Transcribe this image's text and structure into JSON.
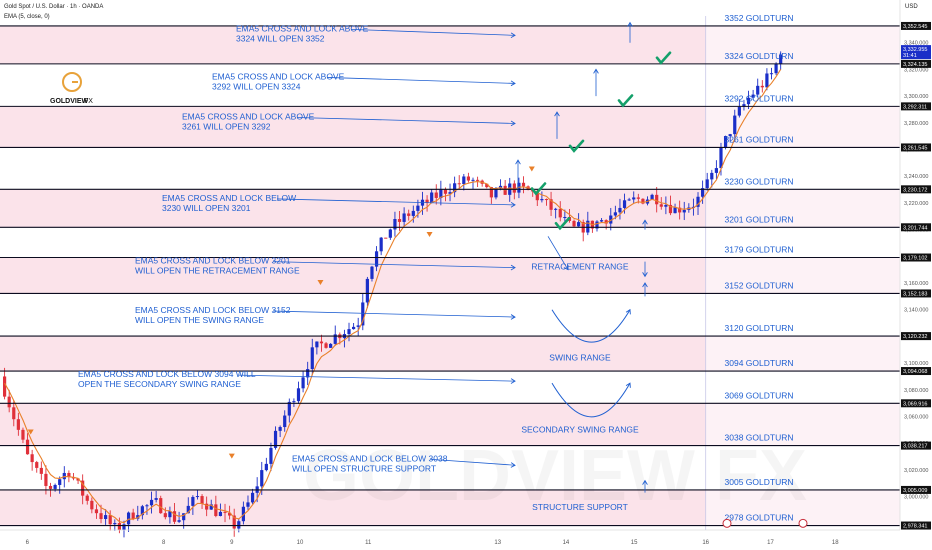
{
  "header": {
    "symbol": "Gold Spot / U.S. Dollar · 1h · OANDA",
    "indicator": "EMA (5, close, 0)",
    "currency": "USD"
  },
  "logo": {
    "brand": "GOLDVIEW",
    "suffix": "FX",
    "watermark": "GOLDVIEW FX"
  },
  "colors": {
    "zone_pink": "#fbe3ea",
    "zone_future": "#eef0fb",
    "line_dark": "#0b0b1f",
    "annotation_blue": "#1f5fd1",
    "bull": "#1a2ec8",
    "bear": "#e0303a",
    "ema": "#e9802a",
    "check": "#14a06a"
  },
  "chart_data": {
    "type": "candlestick",
    "instrument": "XAUUSD",
    "timeframe": "1h",
    "ylim": [
      2975,
      3360
    ],
    "xlim": [
      5.6,
      18.8
    ],
    "x_ticks": [
      "6",
      "8",
      "9",
      "10",
      "11",
      "13",
      "14",
      "15",
      "16",
      "17",
      "18"
    ],
    "y_ticks": [
      "3,340.000",
      "3,320.000",
      "3,300.000",
      "3,280.000",
      "3,260.000",
      "3,240.000",
      "3,220.000",
      "3,200.000",
      "3,180.000",
      "3,160.000",
      "3,140.000",
      "3,120.000",
      "3,100.000",
      "3,080.000",
      "3,060.000",
      "3,040.000",
      "3,020.000",
      "3,000.000",
      "2,980.000"
    ],
    "price_labels": [
      {
        "value": 3352.545,
        "text": "3,352.545"
      },
      {
        "value": 3324.135,
        "text": "3,324.135"
      },
      {
        "value": 3292.311,
        "text": "3,292.311"
      },
      {
        "value": 3261.545,
        "text": "3,261.545"
      },
      {
        "value": 3230.172,
        "text": "3,230.172"
      },
      {
        "value": 3201.744,
        "text": "3,201.744"
      },
      {
        "value": 3179.102,
        "text": "3,179.102"
      },
      {
        "value": 3152.183,
        "text": "3,152.183"
      },
      {
        "value": 3120.232,
        "text": "3,120.232"
      },
      {
        "value": 3094.068,
        "text": "3,094.068"
      },
      {
        "value": 3069.916,
        "text": "3,069.916"
      },
      {
        "value": 3038.217,
        "text": "3,038.217"
      },
      {
        "value": 3005.009,
        "text": "3,005.009"
      },
      {
        "value": 2978.341,
        "text": "2,978.341"
      }
    ],
    "current_price": {
      "value": 3332.955,
      "text": "3,332.955",
      "countdown": "31:41"
    },
    "levels": [
      {
        "value": 3352.545,
        "label": "3352 GOLDTURN"
      },
      {
        "value": 3324.135,
        "label": "3324 GOLDTURN"
      },
      {
        "value": 3292.311,
        "label": "3292 GOLDTURN"
      },
      {
        "value": 3261.545,
        "label": "3261 GOLDTURN"
      },
      {
        "value": 3230.172,
        "label": "3230 GOLDTURN"
      },
      {
        "value": 3201.744,
        "label": "3201 GOLDTURN"
      },
      {
        "value": 3179.102,
        "label": "3179 GOLDTURN"
      },
      {
        "value": 3152.183,
        "label": "3152 GOLDTURN"
      },
      {
        "value": 3120.232,
        "label": "3120 GOLDTURN"
      },
      {
        "value": 3094.068,
        "label": "3094 GOLDTURN"
      },
      {
        "value": 3069.916,
        "label": "3069 GOLDTURN"
      },
      {
        "value": 3038.217,
        "label": "3038 GOLDTURN"
      },
      {
        "value": 3005.009,
        "label": "3005 GOLDTURN"
      },
      {
        "value": 2978.341,
        "label": "2978 GOLDTURN"
      }
    ],
    "zones": [
      {
        "from": 3324.135,
        "to": 3352.545
      },
      {
        "from": 3261.545,
        "to": 3292.311
      },
      {
        "from": 3201.744,
        "to": 3230.172
      },
      {
        "from": 3152.183,
        "to": 3179.102
      },
      {
        "from": 3094.068,
        "to": 3120.232
      },
      {
        "from": 3038.217,
        "to": 3069.916
      },
      {
        "from": 2978.341,
        "to": 3005.009
      }
    ],
    "annotations": [
      {
        "lines": [
          "EMA5 CROSS AND LOCK ABOVE",
          "3324 WILL OPEN 3352"
        ],
        "price": 3344
      },
      {
        "lines": [
          "EMA5 CROSS AND LOCK ABOVE",
          "3292 WILL OPEN 3324"
        ],
        "price": 3308
      },
      {
        "lines": [
          "EMA5 CROSS AND LOCK ABOVE",
          "3261 WILL OPEN 3292"
        ],
        "price": 3278
      },
      {
        "lines": [
          "EMA5 CROSS AND LOCK BELOW",
          "3230 WILL OPEN 3201"
        ],
        "price": 3217
      },
      {
        "lines": [
          "EMA5 CROSS AND LOCK BELOW 3201",
          "WILL OPEN THE RETRACEMENT RANGE"
        ],
        "price": 3170
      },
      {
        "lines": [
          "EMA5 CROSS AND LOCK BELOW 3152",
          "WILL OPEN THE SWING RANGE"
        ],
        "price": 3133
      },
      {
        "lines": [
          "EMA5 CROSS AND LOCK BELOW 3094 WILL",
          "OPEN THE SECONDARY SWING RANGE"
        ],
        "price": 3085
      },
      {
        "lines": [
          "EMA5 CROSS AND LOCK BELOW 3038",
          "WILL OPEN STRUCTURE SUPPORT"
        ],
        "price": 3022
      }
    ],
    "range_labels": [
      {
        "text": "RETRACEMENT RANGE",
        "price": 3170
      },
      {
        "text": "SWING RANGE",
        "price": 3102
      },
      {
        "text": "SECONDARY SWING RANGE",
        "price": 3048
      },
      {
        "text": "STRUCTURE SUPPORT",
        "price": 2990
      }
    ]
  }
}
